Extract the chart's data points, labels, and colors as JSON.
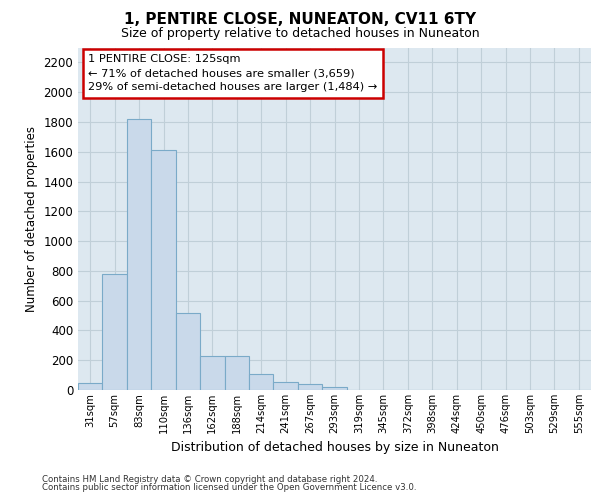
{
  "title": "1, PENTIRE CLOSE, NUNEATON, CV11 6TY",
  "subtitle": "Size of property relative to detached houses in Nuneaton",
  "xlabel": "Distribution of detached houses by size in Nuneaton",
  "ylabel": "Number of detached properties",
  "bar_color": "#c9d9ea",
  "bar_edge_color": "#7aaac8",
  "categories": [
    "31sqm",
    "57sqm",
    "83sqm",
    "110sqm",
    "136sqm",
    "162sqm",
    "188sqm",
    "214sqm",
    "241sqm",
    "267sqm",
    "293sqm",
    "319sqm",
    "345sqm",
    "372sqm",
    "398sqm",
    "424sqm",
    "450sqm",
    "476sqm",
    "503sqm",
    "529sqm",
    "555sqm"
  ],
  "values": [
    50,
    780,
    1820,
    1610,
    520,
    230,
    230,
    105,
    55,
    40,
    20,
    2,
    0,
    0,
    0,
    0,
    0,
    0,
    0,
    0,
    0
  ],
  "ylim": [
    0,
    2300
  ],
  "yticks": [
    0,
    200,
    400,
    600,
    800,
    1000,
    1200,
    1400,
    1600,
    1800,
    2000,
    2200
  ],
  "annotation_text": "1 PENTIRE CLOSE: 125sqm\n← 71% of detached houses are smaller (3,659)\n29% of semi-detached houses are larger (1,484) →",
  "footnote1": "Contains HM Land Registry data © Crown copyright and database right 2024.",
  "footnote2": "Contains public sector information licensed under the Open Government Licence v3.0.",
  "background_color": "#ffffff",
  "plot_bg_color": "#dde8f0",
  "grid_color": "#c0cfd8",
  "annotation_box_color": "white",
  "annotation_edge_color": "#cc0000"
}
